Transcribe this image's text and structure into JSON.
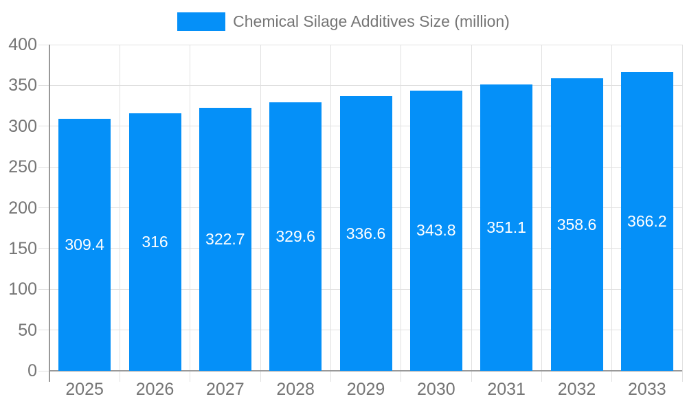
{
  "legend": {
    "label": "Chemical Silage Additives Size (million)"
  },
  "chart_data": {
    "type": "bar",
    "title": "Chemical Silage Additives Size (million)",
    "categories": [
      "2025",
      "2026",
      "2027",
      "2028",
      "2029",
      "2030",
      "2031",
      "2032",
      "2033"
    ],
    "values": [
      309.4,
      316,
      322.7,
      329.6,
      336.6,
      343.8,
      351.1,
      358.6,
      366.2
    ],
    "bar_labels": [
      "309.4",
      "316",
      "322.7",
      "329.6",
      "336.6",
      "343.8",
      "351.1",
      "358.6",
      "366.2"
    ],
    "ytick_labels": [
      "0",
      "50",
      "100",
      "150",
      "200",
      "250",
      "300",
      "350",
      "400"
    ],
    "yticks": [
      0,
      50,
      100,
      150,
      200,
      250,
      300,
      350,
      400
    ],
    "ylim": [
      0,
      400
    ],
    "xlabel": "",
    "ylabel": "",
    "grid": true,
    "legend_position": "top"
  },
  "colors": {
    "bar": "#0590f8",
    "axis_text": "#757575",
    "axis_line": "#999999",
    "grid_line": "#e0e0e0",
    "bar_label_text": "#ffffff",
    "background": "#ffffff"
  }
}
